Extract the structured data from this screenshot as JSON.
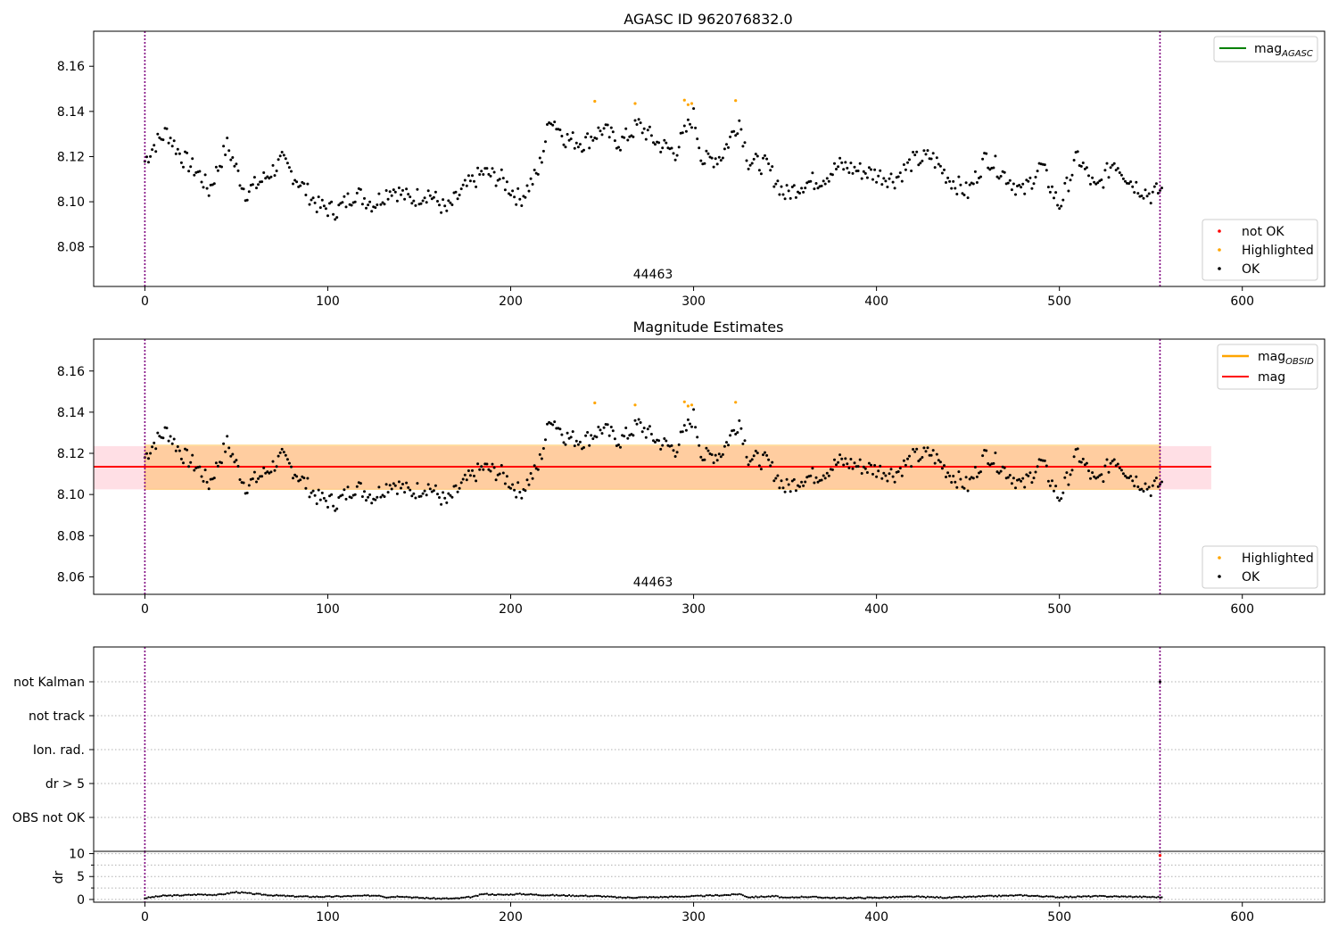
{
  "chart_data": [
    {
      "type": "scatter",
      "title": "AGASC ID 962076832.0",
      "annotation": "44463",
      "xlim": [
        -28,
        645
      ],
      "ylim": [
        8.0625,
        8.1755
      ],
      "xticks": [
        0,
        100,
        200,
        300,
        400,
        500,
        600
      ],
      "yticks": [
        8.08,
        8.1,
        8.12,
        8.14,
        8.16
      ],
      "vlines": [
        0,
        555
      ],
      "legend_lines": [
        {
          "label": "mag",
          "sub": "AGASC",
          "color": "#008000"
        }
      ],
      "legend_points": [
        {
          "label": "not OK",
          "color": "#ff0000"
        },
        {
          "label": "Highlighted",
          "color": "#ffa500"
        },
        {
          "label": "OK",
          "color": "#000000"
        }
      ],
      "series": [
        {
          "name": "Highlighted",
          "color": "#ffa500",
          "points": [
            [
              246,
              8.1445
            ],
            [
              268,
              8.1435
            ],
            [
              295,
              8.145
            ],
            [
              297,
              8.143
            ],
            [
              299,
              8.1435
            ],
            [
              323,
              8.1448
            ]
          ]
        },
        {
          "name": "OK",
          "color": "#000000",
          "anchors": [
            [
              0,
              8.118
            ],
            [
              5,
              8.125
            ],
            [
              12,
              8.131
            ],
            [
              20,
              8.12
            ],
            [
              30,
              8.112
            ],
            [
              35,
              8.105
            ],
            [
              45,
              8.125
            ],
            [
              55,
              8.104
            ],
            [
              65,
              8.11
            ],
            [
              75,
              8.118
            ],
            [
              85,
              8.108
            ],
            [
              95,
              8.098
            ],
            [
              105,
              8.096
            ],
            [
              115,
              8.104
            ],
            [
              125,
              8.099
            ],
            [
              135,
              8.106
            ],
            [
              145,
              8.101
            ],
            [
              155,
              8.104
            ],
            [
              165,
              8.096
            ],
            [
              175,
              8.106
            ],
            [
              185,
              8.113
            ],
            [
              195,
              8.11
            ],
            [
              205,
              8.101
            ],
            [
              215,
              8.113
            ],
            [
              222,
              8.138
            ],
            [
              230,
              8.128
            ],
            [
              240,
              8.126
            ],
            [
              250,
              8.132
            ],
            [
              260,
              8.126
            ],
            [
              270,
              8.134
            ],
            [
              280,
              8.126
            ],
            [
              290,
              8.122
            ],
            [
              300,
              8.138
            ],
            [
              305,
              8.118
            ],
            [
              315,
              8.12
            ],
            [
              325,
              8.136
            ],
            [
              330,
              8.118
            ],
            [
              340,
              8.116
            ],
            [
              350,
              8.103
            ],
            [
              360,
              8.108
            ],
            [
              370,
              8.11
            ],
            [
              380,
              8.116
            ],
            [
              390,
              8.114
            ],
            [
              400,
              8.112
            ],
            [
              410,
              8.11
            ],
            [
              420,
              8.118
            ],
            [
              430,
              8.12
            ],
            [
              440,
              8.11
            ],
            [
              450,
              8.104
            ],
            [
              460,
              8.12
            ],
            [
              470,
              8.112
            ],
            [
              480,
              8.104
            ],
            [
              490,
              8.116
            ],
            [
              500,
              8.098
            ],
            [
              510,
              8.12
            ],
            [
              520,
              8.105
            ],
            [
              530,
              8.118
            ],
            [
              540,
              8.108
            ],
            [
              550,
              8.103
            ],
            [
              555,
              8.105
            ]
          ]
        }
      ]
    },
    {
      "type": "scatter",
      "title": "Magnitude Estimates",
      "annotation": "44463",
      "xlim": [
        -28,
        645
      ],
      "ylim": [
        8.0515,
        8.1755
      ],
      "xticks": [
        0,
        100,
        200,
        300,
        400,
        500,
        600
      ],
      "yticks": [
        8.06,
        8.08,
        8.1,
        8.12,
        8.14,
        8.16
      ],
      "vlines": [
        0,
        555
      ],
      "bands": [
        {
          "x": [
            -28,
            583
          ],
          "y": [
            8.1025,
            8.1235
          ],
          "color": "#ffc0cb",
          "opacity": 0.5
        },
        {
          "x": [
            0,
            555
          ],
          "y": [
            8.1025,
            8.124
          ],
          "color": "#ffa500",
          "opacity": 0.3
        }
      ],
      "hlines": [
        {
          "y": 8.1135,
          "x": [
            -28,
            583
          ],
          "color": "#ff0000"
        }
      ],
      "legend_lines": [
        {
          "label": "mag",
          "sub": "OBSID",
          "color": "#ffa500"
        },
        {
          "label": "mag",
          "sub": "",
          "color": "#ff0000"
        }
      ],
      "legend_points": [
        {
          "label": "Highlighted",
          "color": "#ffa500"
        },
        {
          "label": "OK",
          "color": "#000000"
        }
      ]
    },
    {
      "type": "scatter",
      "ylabels": [
        "not Kalman",
        "not track",
        "Ion. rad.",
        "dr > 5",
        "OBS not OK"
      ],
      "xlim": [
        -28,
        645
      ],
      "vlines": [
        0,
        555
      ],
      "flag_points": [
        {
          "x": 555,
          "y": "not Kalman"
        }
      ]
    },
    {
      "type": "scatter",
      "ylabel": "dr",
      "xlim": [
        -28,
        645
      ],
      "ylim": [
        -0.6,
        10.5
      ],
      "xticks": [
        0,
        100,
        200,
        300,
        400,
        500,
        600
      ],
      "yticks": [
        0,
        5,
        10
      ],
      "vlines": [
        0,
        555
      ],
      "red_points": [
        [
          555,
          9.6
        ]
      ],
      "segments": [
        [
          0,
          0.3
        ],
        [
          10,
          0.8
        ],
        [
          20,
          0.9
        ],
        [
          30,
          1.1
        ],
        [
          40,
          1.0
        ],
        [
          50,
          1.6
        ],
        [
          60,
          1.2
        ],
        [
          70,
          0.9
        ],
        [
          80,
          0.7
        ],
        [
          90,
          0.6
        ],
        [
          100,
          0.6
        ],
        [
          110,
          0.7
        ],
        [
          120,
          0.8
        ],
        [
          128,
          0.9
        ],
        [
          132,
          0.5
        ],
        [
          140,
          0.7
        ],
        [
          148,
          0.4
        ],
        [
          160,
          0.2
        ],
        [
          170,
          0.2
        ],
        [
          180,
          0.6
        ],
        [
          185,
          1.2
        ],
        [
          195,
          1.0
        ],
        [
          205,
          1.2
        ],
        [
          215,
          1.0
        ],
        [
          225,
          0.9
        ],
        [
          240,
          0.8
        ],
        [
          250,
          0.7
        ],
        [
          260,
          0.4
        ],
        [
          280,
          0.5
        ],
        [
          300,
          0.7
        ],
        [
          320,
          1.0
        ],
        [
          325,
          1.2
        ],
        [
          330,
          0.5
        ],
        [
          345,
          0.7
        ],
        [
          350,
          0.3
        ],
        [
          360,
          0.6
        ],
        [
          380,
          0.3
        ],
        [
          400,
          0.4
        ],
        [
          420,
          0.6
        ],
        [
          440,
          0.4
        ],
        [
          460,
          0.7
        ],
        [
          480,
          0.9
        ],
        [
          500,
          0.5
        ],
        [
          520,
          0.7
        ],
        [
          540,
          0.6
        ],
        [
          555,
          0.5
        ]
      ]
    }
  ]
}
